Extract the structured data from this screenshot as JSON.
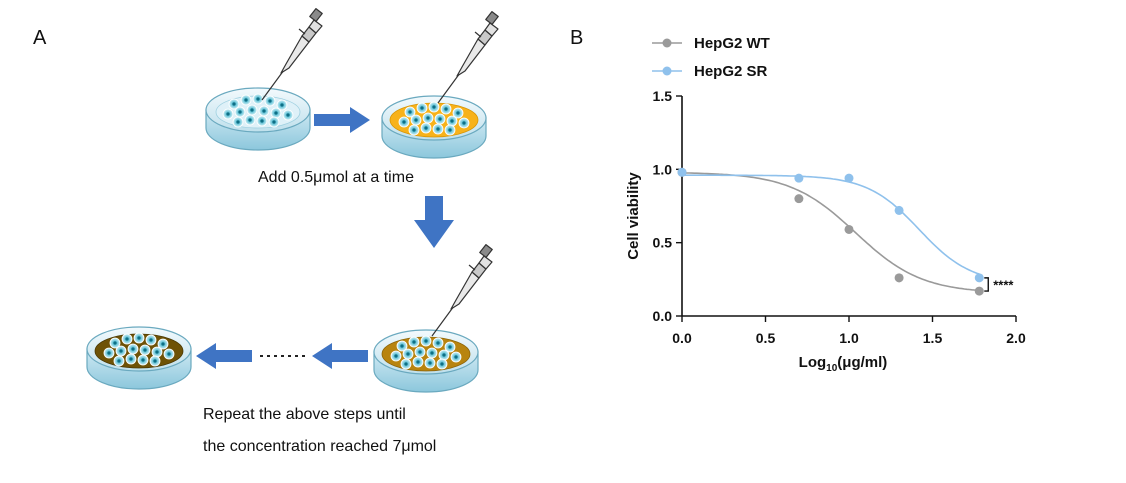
{
  "panel_a": {
    "letter": "A",
    "caption_add": "Add 0.5μmol at a time",
    "caption_repeat_1": "Repeat the above steps until",
    "caption_repeat_2": "the concentration reached 7μmol"
  },
  "panel_b": {
    "letter": "B"
  },
  "colors": {
    "arrow": "#3f74c4",
    "wt": "#9a9a9a",
    "sr": "#8fc1ec",
    "medium_clear": "#dff1f8",
    "medium_yellow": "#f7b21a",
    "medium_ochre": "#b8840f",
    "medium_brown": "#6e5206"
  },
  "chart_data": {
    "type": "scatter",
    "xlabel_main": "Log",
    "xlabel_sub": "10",
    "xlabel_tail": "(μg/ml)",
    "ylabel": "Cell viability",
    "xlim": [
      0,
      2.0
    ],
    "ylim": [
      0,
      1.5
    ],
    "x_ticks": [
      "0.0",
      "0.5",
      "1.0",
      "1.5",
      "2.0"
    ],
    "y_ticks": [
      "0.0",
      "0.5",
      "1.0",
      "1.5"
    ],
    "legend_position": "top-left",
    "significance": "****",
    "series": [
      {
        "name": "HepG2 WT",
        "color": "#9a9a9a",
        "x": [
          0,
          0.7,
          1.0,
          1.3,
          1.78
        ],
        "y": [
          0.98,
          0.8,
          0.59,
          0.26,
          0.17
        ],
        "err": [
          0.02,
          0.02,
          0.01,
          0.03,
          0.01
        ],
        "fit": {
          "top": 0.98,
          "bottom": 0.155,
          "logEC50": 1.04,
          "hill": 2.2
        }
      },
      {
        "name": "HepG2 SR",
        "color": "#8fc1ec",
        "x": [
          0,
          0.7,
          1.0,
          1.3,
          1.78
        ],
        "y": [
          0.98,
          0.94,
          0.94,
          0.72,
          0.26
        ],
        "err": [
          0.02,
          0.01,
          0.01,
          0.03,
          0.02
        ],
        "fit": {
          "top": 0.96,
          "bottom": 0.22,
          "logEC50": 1.42,
          "hill": 2.8
        }
      }
    ]
  }
}
